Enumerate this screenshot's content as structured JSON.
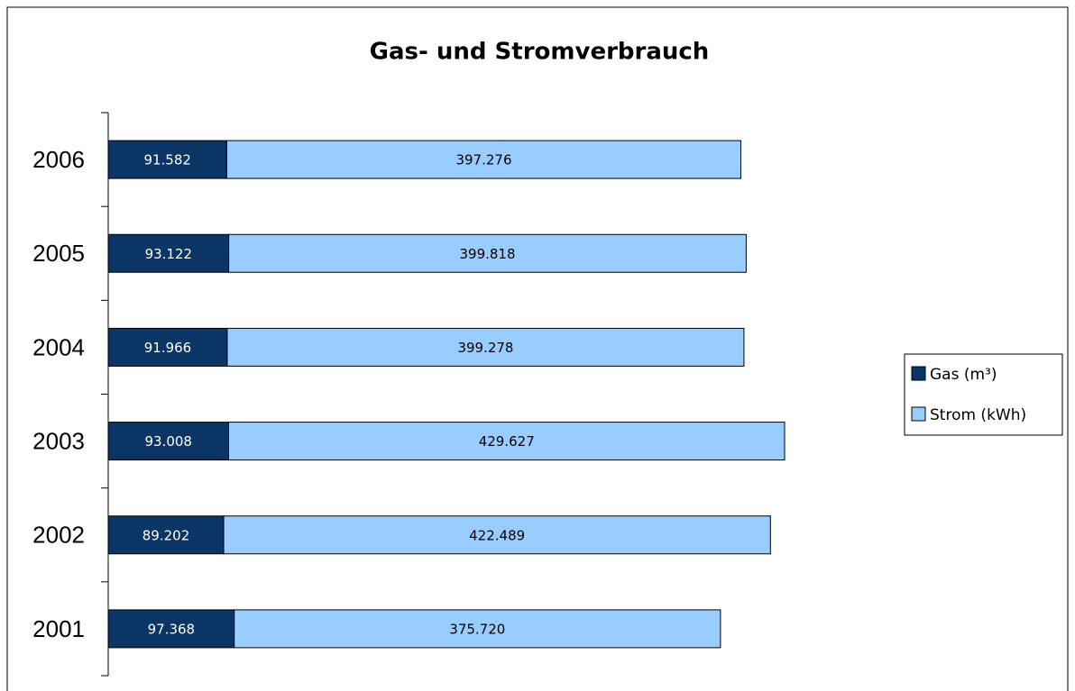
{
  "chart_data": {
    "type": "stacked-barh",
    "title": "Gas- und Stromverbrauch",
    "categories": [
      "2001",
      "2002",
      "2003",
      "2004",
      "2005",
      "2006"
    ],
    "series": [
      {
        "name": "Gas (m³)",
        "color": "#0b3565",
        "label_color": "#ffffff",
        "values": [
          97368,
          89202,
          93008,
          91966,
          93122,
          91582
        ],
        "value_labels": [
          "97.368",
          "89.202",
          "93.008",
          "91.966",
          "93.122",
          "91.582"
        ]
      },
      {
        "name": "Strom (kWh)",
        "color": "#99ccff",
        "label_color": "#000000",
        "values": [
          375720,
          422489,
          429627,
          399278,
          399818,
          397276
        ],
        "value_labels": [
          "375.720",
          "422.489",
          "429.627",
          "399.278",
          "399.818",
          "397.276"
        ]
      }
    ],
    "legend": "right"
  }
}
